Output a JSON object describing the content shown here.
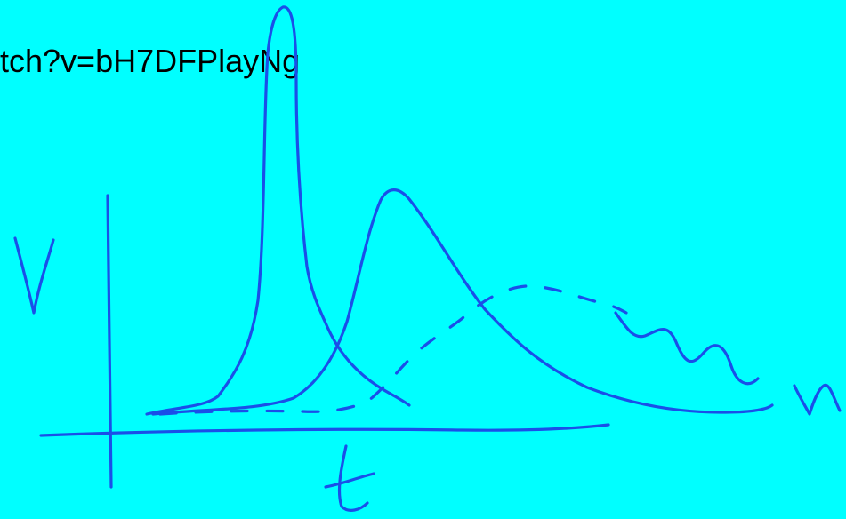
{
  "url_fragment": "tch?v=bH7DFPlayNg",
  "labels": {
    "y_axis": "V",
    "x_axis": "t",
    "trailing": "n"
  },
  "colors": {
    "background": "#00ffff",
    "ink": "#1a4fe8",
    "text": "#000000"
  }
}
